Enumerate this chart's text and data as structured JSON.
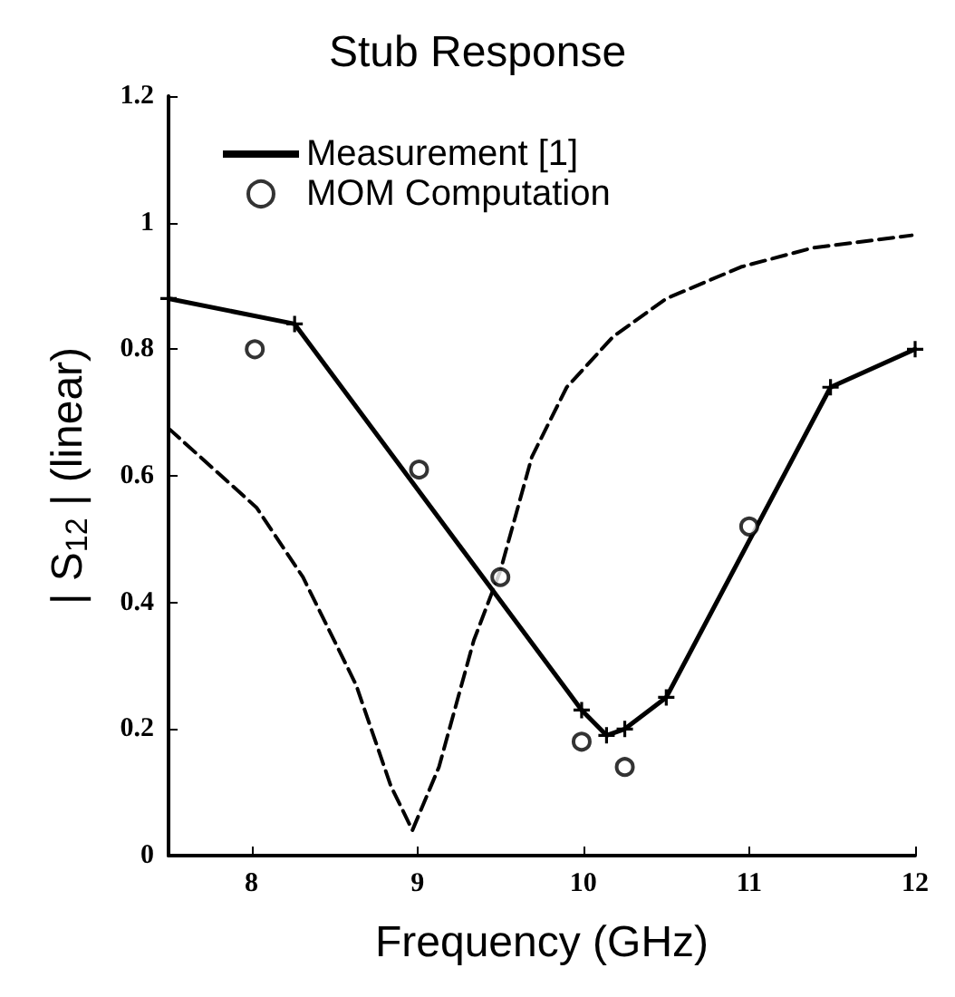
{
  "chart_data": {
    "type": "line",
    "title": "Stub Response",
    "xlabel": "Frequency (GHz)",
    "ylabel": "| S$_{12}$ | (linear)",
    "xlim": [
      7.5,
      12
    ],
    "xticks": [
      8,
      9,
      10,
      11,
      12
    ],
    "ylim": [
      0,
      1.2
    ],
    "yticks": [
      0,
      0.2,
      0.4,
      0.6,
      0.8,
      1,
      1.2
    ],
    "grid": false,
    "legend": "top left",
    "series": [
      {
        "name": "Measurement [1]",
        "color": "#000000",
        "marker": "cross",
        "line_style": "solid",
        "x": [
          7.5,
          8.26,
          9.99,
          10.14,
          10.25,
          10.5,
          11.49,
          12
        ],
        "values": [
          0.88,
          0.84,
          0.23,
          0.19,
          0.2,
          0.25,
          0.74,
          0.8
        ]
      },
      {
        "name": "MOM Computation",
        "type": "scatter",
        "color": "#000000",
        "marker": "circle",
        "x": [
          8.02,
          9.01,
          9.5,
          9.99,
          10.25,
          11.0
        ],
        "values": [
          0.8,
          0.61,
          0.44,
          0.18,
          0.14,
          0.52
        ]
      },
      {
        "color": "#000000",
        "marker": "none",
        "line_style": "dashed",
        "x": [
          7.5,
          8.03,
          8.31,
          8.63,
          8.84,
          8.97,
          9.13,
          9.34,
          9.5,
          9.69,
          9.9,
          10.18,
          10.5,
          10.95,
          11.38,
          11.98
        ],
        "values": [
          0.675,
          0.55,
          0.44,
          0.27,
          0.11,
          0.04,
          0.14,
          0.34,
          0.45,
          0.63,
          0.74,
          0.82,
          0.88,
          0.93,
          0.96,
          0.98
        ]
      }
    ]
  }
}
